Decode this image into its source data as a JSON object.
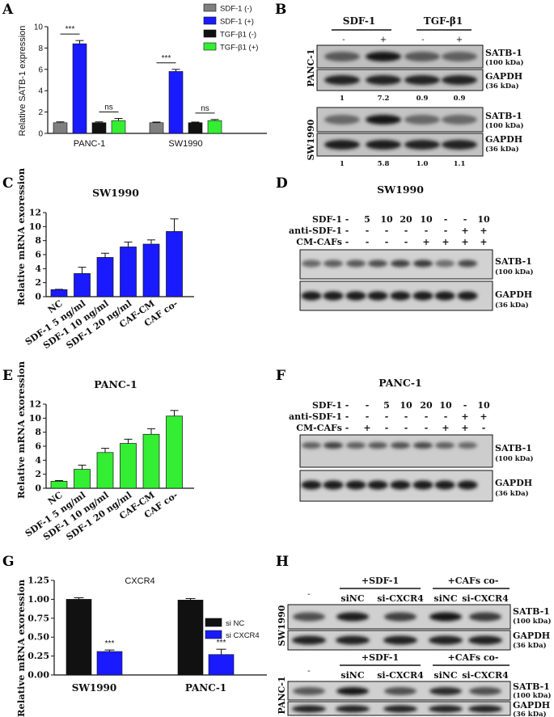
{
  "panels": {
    "A": "A",
    "B": "B",
    "C": "C",
    "D": "D",
    "E": "E",
    "F": "F",
    "G": "G",
    "H": "H"
  },
  "colors": {
    "gray": "#7f7f7f",
    "blue": "#1a1aff",
    "black": "#111111",
    "green": "#33ee33"
  },
  "chart_data": [
    {
      "id": "A",
      "type": "bar",
      "ylabel": "Relative SATB-1 expression",
      "ylim": [
        0,
        10
      ],
      "yticks": [
        0,
        2,
        4,
        6,
        8,
        10
      ],
      "categories": [
        "PANC-1",
        "SW1990"
      ],
      "series": [
        {
          "name": "SDF-1 (-)",
          "color": "#7f7f7f",
          "values": [
            1.0,
            1.0
          ],
          "errors": [
            0.08,
            0.06
          ]
        },
        {
          "name": "SDF-1 (+)",
          "color": "#1a1aff",
          "values": [
            8.4,
            5.8
          ],
          "errors": [
            0.3,
            0.2
          ]
        },
        {
          "name": "TGF-β1 (-)",
          "color": "#111111",
          "values": [
            1.0,
            1.0
          ],
          "errors": [
            0.08,
            0.06
          ]
        },
        {
          "name": "TGF-β1 (+)",
          "color": "#33ee33",
          "values": [
            1.2,
            1.2
          ],
          "errors": [
            0.2,
            0.1
          ]
        }
      ],
      "annotations": [
        "***",
        "ns",
        "***",
        "ns"
      ]
    },
    {
      "id": "C",
      "type": "bar",
      "title": "SW1990",
      "ylabel": "Relative mRNA exoression",
      "ylim": [
        0,
        12
      ],
      "yticks": [
        0,
        2,
        4,
        6,
        8,
        10,
        12
      ],
      "color": "#1a1aff",
      "categories": [
        "NC",
        "SDF-1 5 ng/ml",
        "SDF-1 10 ng/ml",
        "SDF-1 20 ng/ml",
        "CAF-CM",
        "CAF co-"
      ],
      "values": [
        1.0,
        3.3,
        5.6,
        7.1,
        7.5,
        9.3
      ],
      "errors": [
        0.05,
        0.9,
        0.6,
        0.7,
        0.6,
        1.8
      ]
    },
    {
      "id": "E",
      "type": "bar",
      "title": "PANC-1",
      "ylabel": "Relative mRNA exoression",
      "ylim": [
        0,
        12
      ],
      "yticks": [
        0,
        2,
        4,
        6,
        8,
        10,
        12
      ],
      "color": "#33ee33",
      "categories": [
        "NC",
        "SDF-1 5 ng/ml",
        "SDF-1 10 ng/ml",
        "SDF-1 20 ng/ml",
        "CAF-CM",
        "CAF co-"
      ],
      "values": [
        1.0,
        2.7,
        5.1,
        6.4,
        7.7,
        10.3
      ],
      "errors": [
        0.1,
        0.6,
        0.6,
        0.6,
        0.8,
        0.8
      ]
    },
    {
      "id": "G",
      "type": "bar",
      "title": "CXCR4",
      "ylabel": "Relative mRNA exoression",
      "ylim": [
        0,
        1.25
      ],
      "yticks": [
        "0.00",
        "0.25",
        "0.50",
        "0.75",
        "1.00",
        "1.25"
      ],
      "categories": [
        "SW1990",
        "PANC-1"
      ],
      "series": [
        {
          "name": "si NC",
          "color": "#111111",
          "values": [
            1.0,
            0.99
          ],
          "errors": [
            0.02,
            0.02
          ]
        },
        {
          "name": "si CXCR4",
          "color": "#1a1aff",
          "values": [
            0.31,
            0.27
          ],
          "errors": [
            0.02,
            0.07
          ]
        }
      ],
      "annotations": [
        "***",
        "***"
      ]
    }
  ],
  "blots": {
    "B": {
      "group1": "SDF-1",
      "group2": "TGF-β1",
      "signs": [
        "-",
        "+",
        "-",
        "+"
      ],
      "cell1": "PANC-1",
      "cell2": "SW1990",
      "satb": "SATB-1",
      "satb_kda": "(100 kDa)",
      "gapdh": "GAPDH",
      "gapdh_kda": "(36 kDa)",
      "quant1": [
        "1",
        "7.2",
        "0.9",
        "0.9"
      ],
      "quant2": [
        "1",
        "5.8",
        "1.0",
        "1.1"
      ]
    },
    "D": {
      "title": "SW1990",
      "row_labels": [
        "SDF-1",
        "anti-SDF-1",
        "CM-CAFs"
      ],
      "rows": [
        [
          "-",
          "5",
          "10",
          "20",
          "10",
          "-",
          "-",
          "10"
        ],
        [
          "-",
          "-",
          "-",
          "-",
          "-",
          "-",
          "+",
          "+"
        ],
        [
          "-",
          "-",
          "-",
          "-",
          "+",
          "+",
          "+",
          "+"
        ]
      ],
      "satb": "SATB-1",
      "satb_kda": "(100 kDa)",
      "gapdh": "GAPDH",
      "gapdh_kda": "(36 kDa)"
    },
    "F": {
      "title": "PANC-1",
      "row_labels": [
        "SDF-1",
        "anti-SDF-1",
        "CM-CAFs"
      ],
      "rows": [
        [
          "-",
          "-",
          "5",
          "10",
          "20",
          "10",
          "-",
          "10"
        ],
        [
          "-",
          "-",
          "-",
          "-",
          "-",
          "-",
          "+",
          "+"
        ],
        [
          "-",
          "+",
          "-",
          "-",
          "-",
          "+",
          "+",
          "-"
        ]
      ],
      "satb": "SATB-1",
      "satb_kda": "(100 kDa)",
      "gapdh": "GAPDH",
      "gapdh_kda": "(36 kDa)"
    },
    "H": {
      "minus": "-",
      "group1": "+SDF-1",
      "group2": "+CAFs  co-",
      "sinc": "siNC",
      "sicxcr4": "si-CXCR4",
      "cell1": "SW1990",
      "cell2": "PANC-1",
      "satb": "SATB-1",
      "satb_kda": "(100 kDa)",
      "gapdh": "GAPDH",
      "gapdh_kda": "(36 kDa)"
    }
  }
}
